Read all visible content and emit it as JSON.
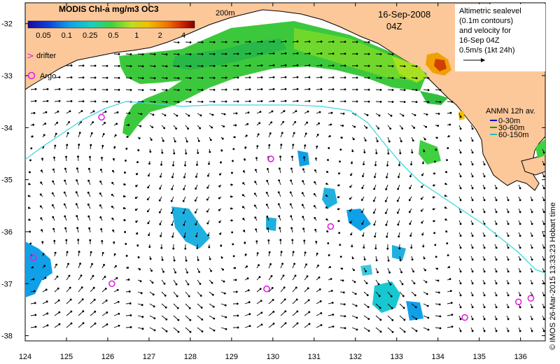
{
  "colorbar": {
    "title": "MODIS Chl-a mg/m3 OC3",
    "ticks": [
      "0.05",
      "0.1",
      "0.25",
      "0.5",
      "1",
      "2",
      "4"
    ],
    "colors": [
      "#1a0aa0",
      "#0a40e0",
      "#10a0e8",
      "#18d0c0",
      "#40d040",
      "#b8e020",
      "#f0c000",
      "#f07000",
      "#d02000",
      "#800000"
    ]
  },
  "contour_label": "200m",
  "date": "16-Sep-2008",
  "time": "04Z",
  "altimetry_note": [
    "Altimetric sealevel",
    "(0.1m contours)",
    "and velocity for",
    "16-Sep 04Z"
  ],
  "velocity_scale": "0.5m/s (1kt 24h)",
  "legend_drifter": "drifter",
  "legend_argo": "Argo",
  "anmn": {
    "title": "ANMN 12h av.",
    "items": [
      {
        "label": "0-30m",
        "color": "#0000cc"
      },
      {
        "label": "30-60m",
        "color": "#00a000"
      },
      {
        "label": "60-150m",
        "color": "#20c0c0"
      }
    ]
  },
  "credit": "© IMOS 26-Mar-2015 13:33:23 Hobart time",
  "x_ticks": [
    "124",
    "125",
    "126",
    "127",
    "128",
    "129",
    "130",
    "131",
    "132",
    "133",
    "134",
    "135",
    "136"
  ],
  "y_ticks": [
    "-32",
    "-33",
    "-34",
    "-35",
    "-36",
    "-37",
    "-38"
  ],
  "argo_floats": [
    {
      "lon": 125.85,
      "lat": -33.8
    },
    {
      "lon": 129.95,
      "lat": -34.6
    },
    {
      "lon": 124.2,
      "lat": -36.5
    },
    {
      "lon": 131.4,
      "lat": -35.9
    },
    {
      "lon": 126.1,
      "lat": -37.0
    },
    {
      "lon": 129.85,
      "lat": -37.1
    },
    {
      "lon": 134.65,
      "lat": -37.65
    },
    {
      "lon": 135.95,
      "lat": -37.35
    },
    {
      "lon": 136.25,
      "lat": -37.28
    }
  ],
  "colors": {
    "land": "#fcc89a",
    "contour": "#40d8e0",
    "argo": "#e020e0"
  }
}
